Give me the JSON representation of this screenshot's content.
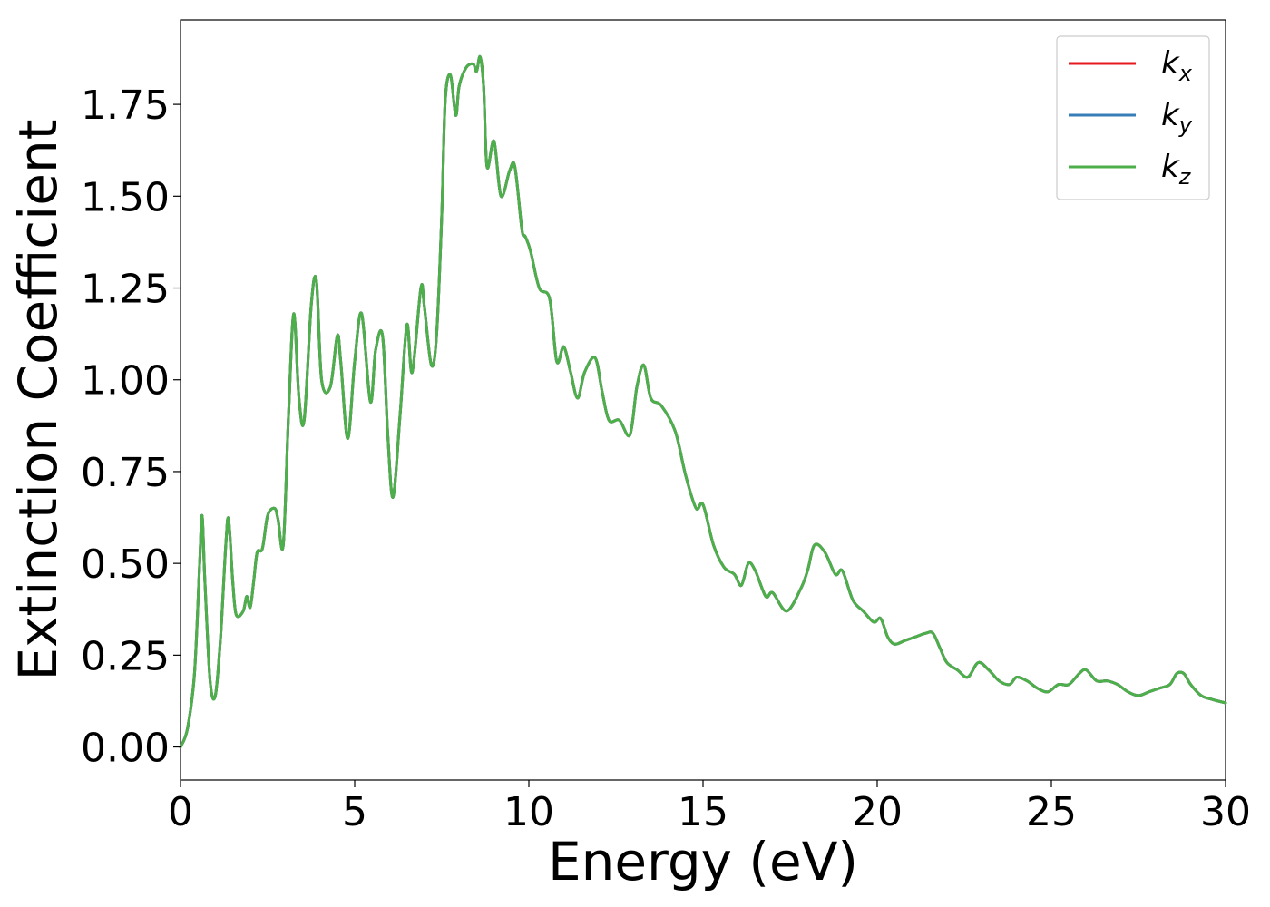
{
  "chart_data": {
    "type": "line",
    "title": "",
    "xlabel": "Energy (eV)",
    "ylabel": "Extinction Coefficient",
    "xlim": [
      0,
      30
    ],
    "ylim": [
      -0.09,
      1.98
    ],
    "xticks": [
      0,
      5,
      10,
      15,
      20,
      25,
      30
    ],
    "xtick_labels": [
      "0",
      "5",
      "10",
      "15",
      "20",
      "25",
      "30"
    ],
    "yticks": [
      0,
      0.25,
      0.5,
      0.75,
      1.0,
      1.25,
      1.5,
      1.75
    ],
    "ytick_labels": [
      "0.00",
      "0.25",
      "0.50",
      "0.75",
      "1.00",
      "1.25",
      "1.50",
      "1.75"
    ],
    "grid": false,
    "legend_position": "top-right",
    "series": [
      {
        "name": "k_x",
        "label_base": "k",
        "label_sub": "x",
        "color": "#e41a1c"
      },
      {
        "name": "k_y",
        "label_base": "k",
        "label_sub": "y",
        "color": "#377eb8"
      },
      {
        "name": "k_z",
        "label_base": "k",
        "label_sub": "z",
        "color": "#4daf4a"
      }
    ],
    "x": [
      0,
      0.2,
      0.4,
      0.55,
      0.62,
      0.7,
      0.85,
      1.0,
      1.15,
      1.3,
      1.38,
      1.5,
      1.6,
      1.8,
      1.9,
      2.0,
      2.1,
      2.2,
      2.35,
      2.5,
      2.7,
      2.8,
      2.95,
      3.1,
      3.25,
      3.4,
      3.55,
      3.75,
      3.9,
      4.05,
      4.3,
      4.5,
      4.6,
      4.8,
      5.0,
      5.2,
      5.45,
      5.6,
      5.8,
      5.95,
      6.1,
      6.3,
      6.5,
      6.65,
      6.9,
      7.0,
      7.2,
      7.35,
      7.5,
      7.6,
      7.75,
      7.9,
      8.0,
      8.2,
      8.4,
      8.5,
      8.6,
      8.7,
      8.8,
      9.0,
      9.2,
      9.45,
      9.6,
      9.8,
      9.9,
      10.05,
      10.3,
      10.6,
      10.8,
      11.0,
      11.2,
      11.4,
      11.6,
      11.9,
      12.1,
      12.3,
      12.6,
      12.9,
      13.1,
      13.3,
      13.5,
      13.8,
      14.2,
      14.5,
      14.8,
      15.0,
      15.3,
      15.6,
      15.9,
      16.1,
      16.3,
      16.5,
      16.8,
      17.0,
      17.4,
      17.8,
      18.0,
      18.2,
      18.5,
      18.8,
      19.0,
      19.3,
      19.6,
      19.9,
      20.1,
      20.3,
      20.5,
      20.8,
      21.1,
      21.4,
      21.6,
      21.8,
      22.0,
      22.3,
      22.6,
      22.9,
      23.2,
      23.5,
      23.8,
      24.0,
      24.3,
      24.6,
      24.9,
      25.2,
      25.5,
      25.8,
      26.0,
      26.3,
      26.6,
      26.9,
      27.2,
      27.5,
      27.8,
      28.1,
      28.4,
      28.6,
      28.8,
      29.0,
      29.3,
      29.6,
      30.0
    ],
    "y": [
      0.0,
      0.05,
      0.2,
      0.5,
      0.63,
      0.45,
      0.18,
      0.14,
      0.3,
      0.55,
      0.62,
      0.45,
      0.36,
      0.37,
      0.41,
      0.38,
      0.45,
      0.53,
      0.54,
      0.63,
      0.65,
      0.62,
      0.55,
      0.9,
      1.18,
      0.95,
      0.89,
      1.2,
      1.27,
      1.0,
      0.98,
      1.12,
      1.05,
      0.84,
      1.05,
      1.18,
      0.94,
      1.08,
      1.12,
      0.85,
      0.68,
      0.9,
      1.15,
      1.02,
      1.25,
      1.2,
      1.04,
      1.12,
      1.45,
      1.76,
      1.83,
      1.72,
      1.8,
      1.85,
      1.86,
      1.84,
      1.88,
      1.8,
      1.58,
      1.65,
      1.5,
      1.57,
      1.58,
      1.41,
      1.39,
      1.35,
      1.25,
      1.22,
      1.05,
      1.09,
      1.02,
      0.95,
      1.02,
      1.06,
      0.97,
      0.89,
      0.89,
      0.85,
      0.98,
      1.04,
      0.95,
      0.93,
      0.86,
      0.74,
      0.65,
      0.66,
      0.55,
      0.49,
      0.47,
      0.44,
      0.5,
      0.48,
      0.41,
      0.42,
      0.37,
      0.43,
      0.48,
      0.55,
      0.53,
      0.47,
      0.48,
      0.4,
      0.37,
      0.34,
      0.35,
      0.3,
      0.28,
      0.29,
      0.3,
      0.31,
      0.31,
      0.27,
      0.23,
      0.21,
      0.19,
      0.23,
      0.21,
      0.18,
      0.17,
      0.19,
      0.18,
      0.16,
      0.15,
      0.17,
      0.17,
      0.2,
      0.21,
      0.18,
      0.18,
      0.17,
      0.15,
      0.14,
      0.15,
      0.16,
      0.17,
      0.2,
      0.2,
      0.17,
      0.14,
      0.13,
      0.12
    ]
  }
}
